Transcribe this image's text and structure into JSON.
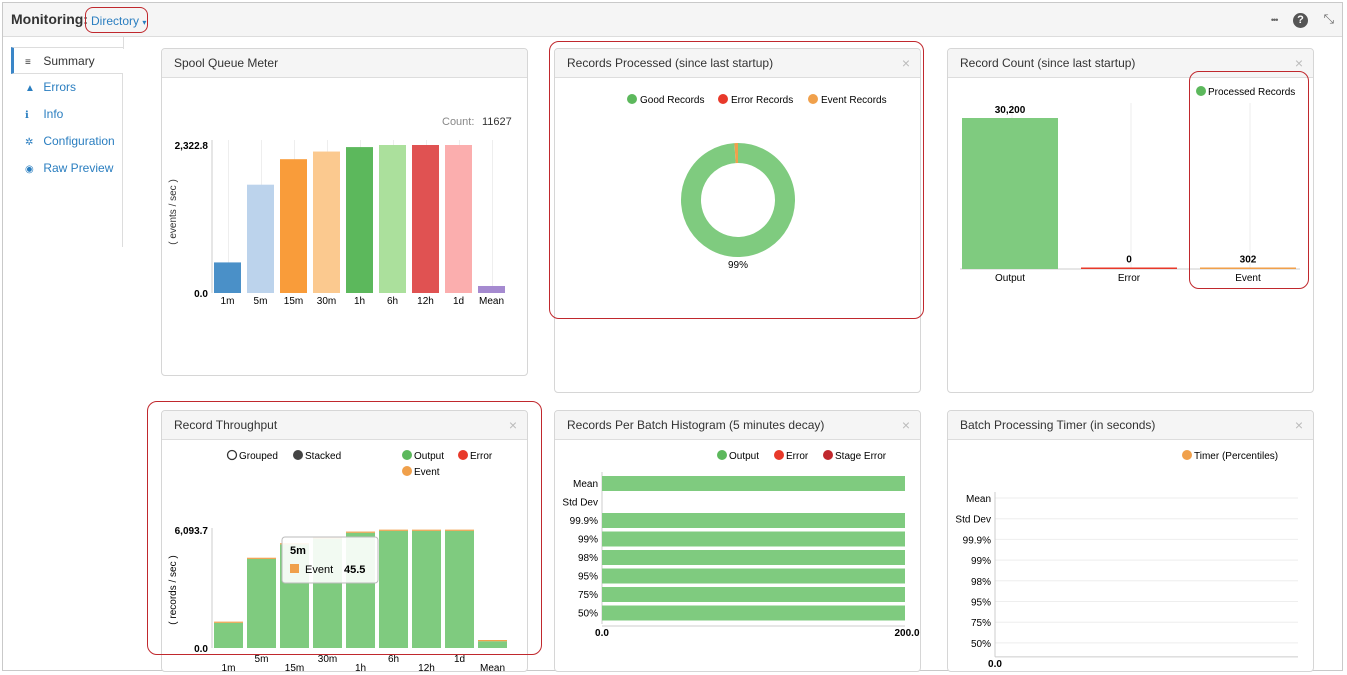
{
  "header": {
    "title": "Monitoring:",
    "dropdown_label": "Directory",
    "caret": "▾",
    "more_icon": "•••",
    "help_icon": "?",
    "collapse_icon": "⤡"
  },
  "sidebar": {
    "items": [
      {
        "label": "Summary",
        "icon": "≡"
      },
      {
        "label": "Errors",
        "icon": "▲"
      },
      {
        "label": "Info",
        "icon": "ℹ"
      },
      {
        "label": "Configuration",
        "icon": "✲"
      },
      {
        "label": "Raw Preview",
        "icon": "◉"
      }
    ]
  },
  "panels": {
    "spool": {
      "title": "Spool Queue Meter",
      "count_label": "Count:",
      "count_value": "11627",
      "ylabel": "( events / sec )"
    },
    "processed": {
      "title": "Records Processed (since last startup)",
      "close": "×",
      "legend": [
        "Good Records",
        "Error Records",
        "Event Records"
      ],
      "center_label": "99%"
    },
    "recordcount": {
      "title": "Record Count (since last startup)",
      "close": "×",
      "legend": "Processed Records"
    },
    "throughput": {
      "title": "Record Throughput",
      "close": "×",
      "mode_grouped": "Grouped",
      "mode_stacked": "Stacked",
      "legend": [
        "Output",
        "Error",
        "Event"
      ],
      "ylabel": "( records / sec )",
      "tooltip": {
        "title": "5m",
        "series": "Event",
        "value": "45.5"
      }
    },
    "histogram": {
      "title": "Records Per Batch Histogram (5 minutes decay)",
      "close": "×",
      "legend": [
        "Output",
        "Error",
        "Stage Error"
      ]
    },
    "timer": {
      "title": "Batch Processing Timer (in seconds)",
      "close": "×",
      "legend": "Timer (Percentiles)"
    }
  },
  "colors": {
    "good": "#5cb85c",
    "green_bar": "#7fcb7f",
    "error": "#e8392a",
    "event": "#f0a04b",
    "stage_error": "#c0282d",
    "link": "#2a7ec0"
  },
  "chart_data": [
    {
      "id": "spool",
      "type": "bar",
      "categories": [
        "1m",
        "5m",
        "15m",
        "30m",
        "1h",
        "6h",
        "12h",
        "1d",
        "Mean"
      ],
      "values": [
        480,
        1700,
        2100,
        2220,
        2290,
        2322.8,
        2322.8,
        2322.8,
        110
      ],
      "colors": [
        "#4a90c8",
        "#bcd3ec",
        "#f99c3a",
        "#fbc98f",
        "#5cb85c",
        "#abe09c",
        "#e05252",
        "#fbaeae",
        "#a58ad0"
      ],
      "ylim": [
        0,
        2322.8
      ],
      "ytick_labels": [
        "0.0",
        "2,322.8"
      ]
    },
    {
      "id": "processed",
      "type": "pie",
      "labels": [
        "Good Records",
        "Error Records",
        "Event Records"
      ],
      "values": [
        99,
        0,
        1
      ],
      "colors": [
        "#7fcb7f",
        "#e8392a",
        "#f0a04b"
      ]
    },
    {
      "id": "recordcount",
      "type": "bar",
      "categories": [
        "Output",
        "Error",
        "Event"
      ],
      "values": [
        30200,
        0,
        302
      ],
      "value_labels": [
        "30,200",
        "0",
        "302"
      ],
      "ylim": [
        0,
        30200
      ]
    },
    {
      "id": "throughput",
      "type": "bar",
      "categories": [
        "1m",
        "5m",
        "15m",
        "30m",
        "1h",
        "6h",
        "12h",
        "1d",
        "Mean"
      ],
      "series": [
        {
          "name": "Output",
          "values": [
            1300,
            4600,
            5350,
            5650,
            5950,
            6050,
            6050,
            6050,
            350
          ]
        },
        {
          "name": "Error",
          "values": [
            0,
            0,
            0,
            0,
            0,
            0,
            0,
            0,
            0
          ]
        },
        {
          "name": "Event",
          "values": [
            13,
            45.5,
            53,
            56,
            59,
            60,
            60,
            60,
            4
          ]
        }
      ],
      "ylim": [
        0,
        6093.7
      ],
      "ytick_labels": [
        "0.0",
        "6,093.7"
      ]
    },
    {
      "id": "histogram",
      "type": "bar",
      "orientation": "horizontal",
      "categories": [
        "Mean",
        "Std Dev",
        "99.9%",
        "99%",
        "98%",
        "95%",
        "75%",
        "50%"
      ],
      "values": [
        200,
        0,
        200,
        200,
        200,
        200,
        200,
        200
      ],
      "xlim": [
        0,
        200
      ],
      "xtick_labels": [
        "0.0",
        "200.0"
      ]
    },
    {
      "id": "timer",
      "type": "bar",
      "orientation": "horizontal",
      "categories": [
        "Mean",
        "Std Dev",
        "99.9%",
        "99%",
        "98%",
        "95%",
        "75%",
        "50%"
      ],
      "values": [
        0,
        0,
        0,
        0,
        0,
        0,
        0,
        0
      ],
      "xtick_labels": [
        "0.0"
      ]
    }
  ]
}
